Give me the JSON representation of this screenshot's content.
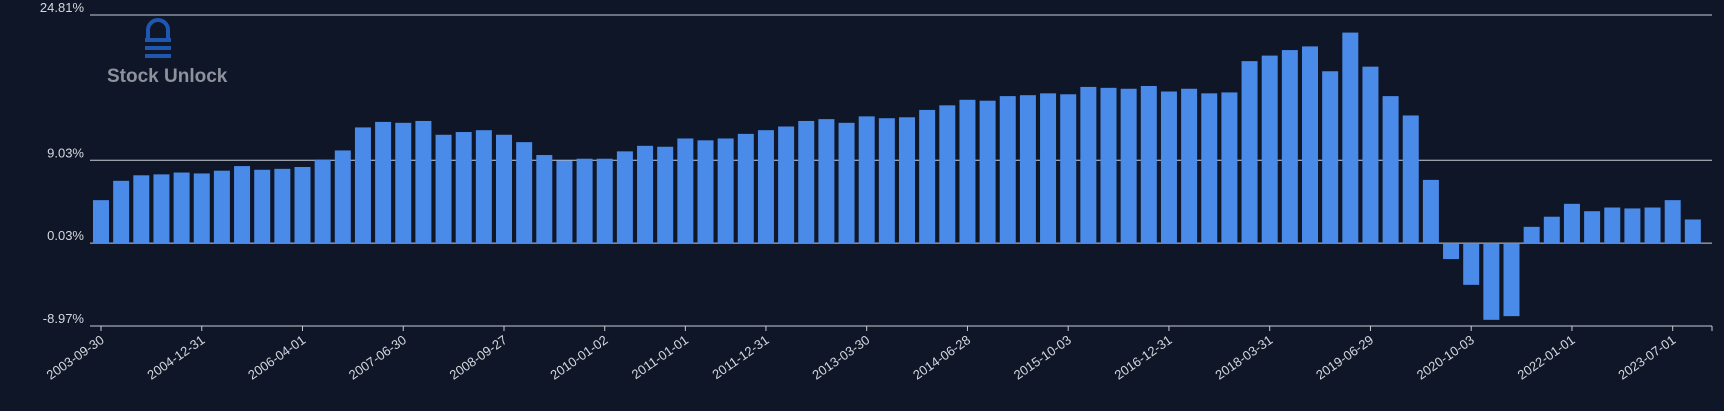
{
  "brand": {
    "name": "Stock Unlock",
    "icon": "stock-unlock-logo-icon"
  },
  "colors": {
    "background": "#0e1627",
    "bar": "#4a8ae8",
    "grid": "#c8ccd4",
    "text": "#d5d8de",
    "brand": "#1e56b0"
  },
  "chart_data": {
    "type": "bar",
    "title": "",
    "xlabel": "",
    "ylabel": "",
    "ylim": [
      -8.97,
      24.81
    ],
    "yticks": [
      24.81,
      9.03,
      0.03,
      -8.97
    ],
    "ytick_labels": [
      "24.81%",
      "9.03%",
      "0.03%",
      "-8.97%"
    ],
    "xtick_labels": [
      {
        "label": "2003-09-30",
        "index": 0
      },
      {
        "label": "2004-12-31",
        "index": 5
      },
      {
        "label": "2006-04-01",
        "index": 10
      },
      {
        "label": "2007-06-30",
        "index": 15
      },
      {
        "label": "2008-09-27",
        "index": 20
      },
      {
        "label": "2010-01-02",
        "index": 25
      },
      {
        "label": "2011-01-01",
        "index": 29
      },
      {
        "label": "2011-12-31",
        "index": 33
      },
      {
        "label": "2013-03-30",
        "index": 38
      },
      {
        "label": "2014-06-28",
        "index": 43
      },
      {
        "label": "2015-10-03",
        "index": 48
      },
      {
        "label": "2016-12-31",
        "index": 53
      },
      {
        "label": "2018-03-31",
        "index": 58
      },
      {
        "label": "2019-06-29",
        "index": 63
      },
      {
        "label": "2020-10-03",
        "index": 68
      },
      {
        "label": "2022-01-01",
        "index": 73
      },
      {
        "label": "2023-07-01",
        "index": 78
      }
    ],
    "grid": true,
    "legend": "none",
    "values": [
      4.7,
      6.8,
      7.4,
      7.5,
      7.7,
      7.6,
      7.9,
      8.4,
      8.0,
      8.1,
      8.3,
      9.1,
      10.1,
      12.6,
      13.2,
      13.1,
      13.3,
      11.8,
      12.1,
      12.3,
      11.8,
      11.0,
      9.6,
      9.0,
      9.2,
      9.2,
      10.0,
      10.6,
      10.5,
      11.4,
      11.2,
      11.4,
      11.9,
      12.3,
      12.7,
      13.3,
      13.5,
      13.1,
      13.8,
      13.6,
      13.7,
      14.5,
      15.0,
      15.6,
      15.5,
      16.0,
      16.1,
      16.3,
      16.2,
      17.0,
      16.9,
      16.8,
      17.1,
      16.5,
      16.8,
      16.3,
      16.4,
      19.8,
      20.4,
      21.0,
      21.4,
      18.7,
      22.9,
      19.2,
      16.0,
      13.9,
      6.9,
      -1.7,
      -4.5,
      -8.3,
      -7.9,
      1.8,
      2.9,
      4.3,
      3.5,
      3.9,
      3.8,
      3.9,
      4.7,
      2.6
    ]
  }
}
